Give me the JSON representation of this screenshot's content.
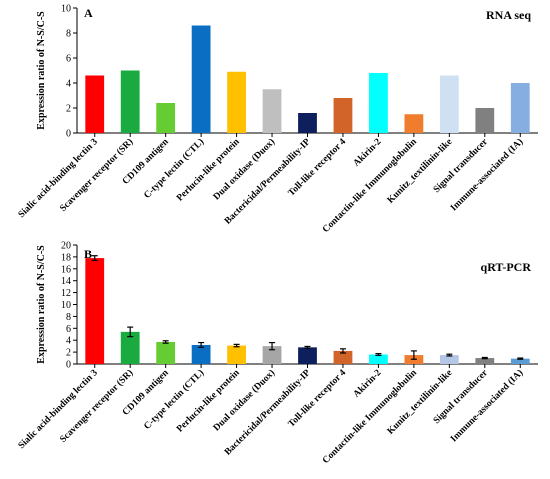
{
  "chart_data": [
    {
      "type": "bar",
      "panel_label": "A",
      "title": "RNA seq",
      "ylabel": "Expression ratio of N-S/C-S",
      "xlabel": "",
      "ylim": [
        0,
        10
      ],
      "yticks": [
        "0",
        "2",
        "4",
        "6",
        "8",
        "10"
      ],
      "grid": false,
      "categories": [
        "Sialic acid-binding lectin 3",
        "Scavenger receptor (SR)",
        "CD109 antigen",
        "C-type lectin (CTL)",
        "Perlucin-like protein",
        "Dual oxidase (Duox)",
        "Bactericidal/Permeability-IP",
        "Toll-like receptor 4",
        "Akirin-2",
        "Contactin-like Immunoglobulin",
        "Kunitz_textilinin-like",
        "Signal transducer",
        "Immune-associated (IA)"
      ],
      "values": [
        4.6,
        5.0,
        2.4,
        8.6,
        4.9,
        3.5,
        1.6,
        2.8,
        4.8,
        1.5,
        4.6,
        2.0,
        4.0
      ],
      "colors": [
        "#ff0000",
        "#1aab40",
        "#66cc33",
        "#0a6fc2",
        "#ffc000",
        "#bfbfbf",
        "#0d1f5c",
        "#d2642a",
        "#00ffff",
        "#f07d2d",
        "#cfe0f2",
        "#808080",
        "#86aee0"
      ]
    },
    {
      "type": "bar",
      "panel_label": "B",
      "title": "qRT-PCR",
      "ylabel": "Expression ratio of N-S/C-S",
      "xlabel": "",
      "ylim": [
        0,
        20
      ],
      "yticks": [
        "0",
        "2",
        "4",
        "6",
        "8",
        "10",
        "12",
        "14",
        "16",
        "18",
        "20"
      ],
      "grid": false,
      "categories": [
        "Sialic acid-binding lectin 3",
        "Scavenger receptor (SR)",
        "CD109 antigen",
        "C-type lectin (CTL)",
        "Perlucin-like protein",
        "Dual oxidase (Duox)",
        "Bactericidal/Permeability-IP",
        "Toll-like receptor 4",
        "Akirin-2",
        "Contactin-like Immunoglobulin",
        "Kunitz_textilinin-like",
        "Signal transducer",
        "Immune-associated (IA)"
      ],
      "values": [
        17.8,
        5.4,
        3.7,
        3.2,
        3.1,
        3.0,
        2.8,
        2.2,
        1.6,
        1.5,
        1.5,
        1.0,
        0.9
      ],
      "errors": [
        0.4,
        0.8,
        0.2,
        0.4,
        0.2,
        0.6,
        0.15,
        0.35,
        0.15,
        0.7,
        0.15,
        0.1,
        0.1
      ],
      "colors": [
        "#ff0000",
        "#1aab40",
        "#66cc33",
        "#0a6fc2",
        "#ffc000",
        "#a6a6a6",
        "#0d1f5c",
        "#d2642a",
        "#00ffff",
        "#f07d2d",
        "#b4c7e7",
        "#808080",
        "#5b9bd5"
      ]
    }
  ]
}
